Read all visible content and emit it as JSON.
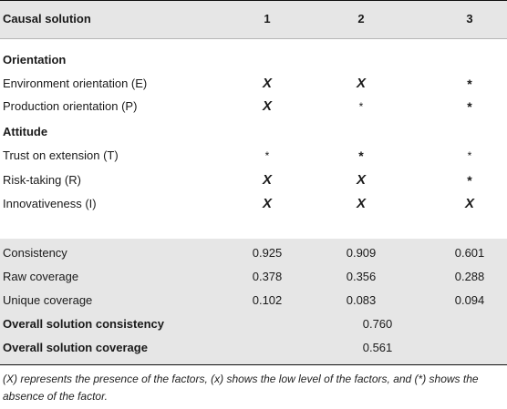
{
  "header": {
    "label": "Causal solution",
    "cols": [
      "1",
      "2",
      "3"
    ]
  },
  "sections": [
    {
      "title": "Orientation",
      "rows": [
        {
          "label": "Environment orientation (E)",
          "marks": [
            "X",
            "X",
            "*"
          ]
        },
        {
          "label": "Production orientation (P)",
          "marks": [
            "X",
            "*",
            "*"
          ]
        }
      ]
    },
    {
      "title": "Attitude",
      "rows": [
        {
          "label": "Trust on extension (T)",
          "marks": [
            "*",
            "*",
            "*"
          ]
        },
        {
          "label": "Risk-taking (R)",
          "marks": [
            "X",
            "X",
            "*"
          ]
        },
        {
          "label": "Innovativeness (I)",
          "marks": [
            "X",
            "X",
            "X"
          ]
        }
      ]
    }
  ],
  "metrics": [
    {
      "label": "Consistency",
      "values": [
        "0.925",
        "0.909",
        "0.601"
      ]
    },
    {
      "label": "Raw coverage",
      "values": [
        "0.378",
        "0.356",
        "0.288"
      ]
    },
    {
      "label": "Unique coverage",
      "values": [
        "0.102",
        "0.083",
        "0.094"
      ]
    }
  ],
  "overall": [
    {
      "label": "Overall solution consistency",
      "value": "0.760"
    },
    {
      "label": "Overall solution coverage",
      "value": "0.561"
    }
  ],
  "footnote": "(X) represents the presence of the factors, (x) shows the low level of the factors, and (*) shows the absence of the factor."
}
